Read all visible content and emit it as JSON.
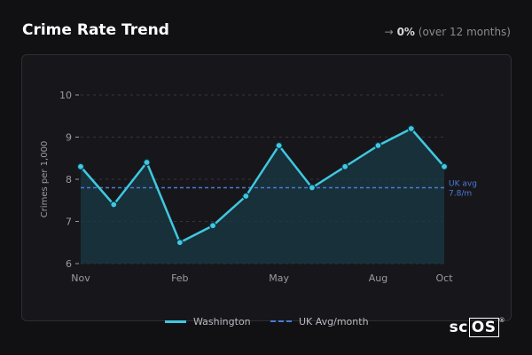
{
  "header": {
    "title": "Crime Rate Trend",
    "change_arrow": "→",
    "change_value": "0%",
    "change_period": "(over 12 months)"
  },
  "brand": {
    "prefix": "sc",
    "boxed": "OS",
    "mark": "®"
  },
  "colors": {
    "series": "#40c8e0",
    "reference": "#4a7bd8",
    "grid": "#35353c",
    "axis_text": "#9a9aa0"
  },
  "chart_data": {
    "type": "line",
    "ylabel": "Crimes per 1,000",
    "xlabel": "",
    "ylim": [
      6,
      10
    ],
    "yticks": [
      6,
      7,
      8,
      9,
      10
    ],
    "x_labels": [
      "Nov",
      "Feb",
      "May",
      "Aug",
      "Oct"
    ],
    "x_label_index": [
      0,
      3,
      6,
      9,
      11
    ],
    "series": [
      {
        "name": "Washington",
        "values": [
          8.3,
          7.4,
          8.4,
          6.5,
          6.9,
          7.6,
          8.8,
          7.8,
          8.3,
          8.8,
          9.2,
          8.3
        ]
      }
    ],
    "reference": {
      "name": "UK Avg/month",
      "value": 7.8,
      "label_line1": "UK avg",
      "label_line2": "7.8/m"
    },
    "grid": true,
    "legend": "bottom"
  }
}
